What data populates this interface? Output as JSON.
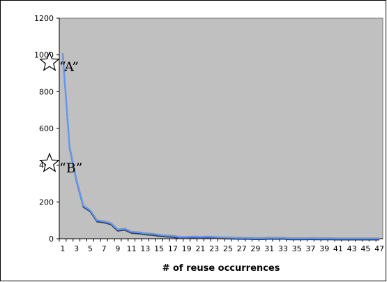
{
  "chart_data": {
    "type": "line",
    "title": "",
    "xlabel": "# of reuse occurrences",
    "ylabel": "",
    "ylim": [
      0,
      1200
    ],
    "yticks": [
      0,
      200,
      400,
      600,
      800,
      1000,
      1200
    ],
    "xlim": [
      1,
      47
    ],
    "xticks": [
      1,
      3,
      5,
      7,
      9,
      11,
      13,
      15,
      17,
      19,
      21,
      23,
      25,
      27,
      29,
      31,
      33,
      35,
      37,
      39,
      41,
      43,
      45,
      47
    ],
    "grid": false,
    "legend": "none",
    "plot_background": "#c0c0c0",
    "x": [
      1,
      2,
      3,
      4,
      5,
      6,
      7,
      8,
      9,
      10,
      11,
      12,
      13,
      14,
      15,
      16,
      17,
      18,
      19,
      20,
      21,
      22,
      23,
      24,
      25,
      26,
      27,
      28,
      29,
      30,
      31,
      32,
      33,
      34,
      35,
      36,
      37,
      38,
      39,
      40,
      41,
      42,
      43,
      44,
      45,
      46,
      47
    ],
    "series": [
      {
        "color": "#6699ee",
        "values": [
          1010,
          500,
          320,
          180,
          155,
          100,
          95,
          85,
          50,
          55,
          38,
          35,
          30,
          27,
          22,
          18,
          16,
          10,
          10,
          12,
          10,
          12,
          10,
          8,
          7,
          6,
          5,
          5,
          4,
          4,
          6,
          5,
          6,
          3,
          3,
          3,
          4,
          3,
          3,
          3,
          2,
          2,
          2,
          2,
          2,
          2,
          2
        ]
      }
    ],
    "annotations": [
      {
        "label": "“A”",
        "icon": "star-outline-icon",
        "x": 1,
        "y": 960
      },
      {
        "label": "“B”",
        "icon": "star-outline-icon",
        "x": 1,
        "y": 410
      }
    ]
  }
}
